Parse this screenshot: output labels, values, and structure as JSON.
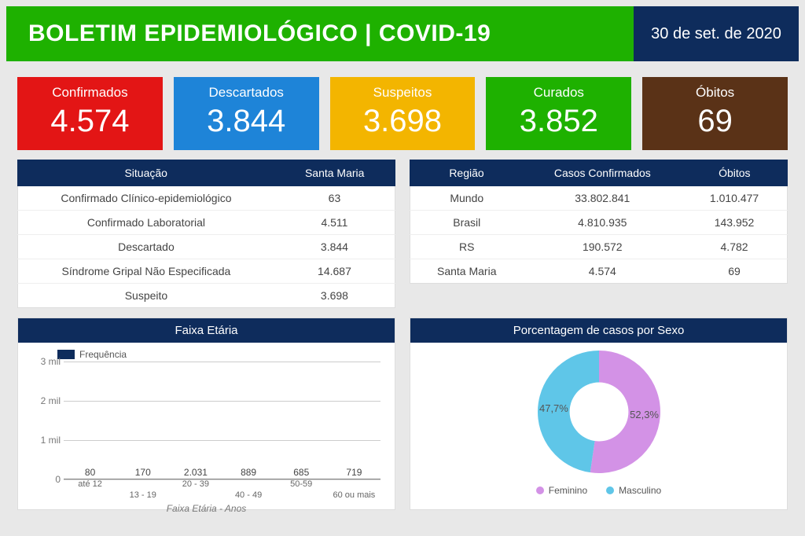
{
  "header": {
    "title": "BOLETIM EPIDEMIOLÓGICO | COVID-19",
    "date": "30 de set. de 2020",
    "title_bg": "#1eb100",
    "date_bg": "#0e2c5c",
    "title_fontsize": 30
  },
  "cards": [
    {
      "label": "Confirmados",
      "value": "4.574",
      "bg": "#e31515"
    },
    {
      "label": "Descartados",
      "value": "3.844",
      "bg": "#1e84d8"
    },
    {
      "label": "Suspeitos",
      "value": "3.698",
      "bg": "#f3b500"
    },
    {
      "label": "Curados",
      "value": "3.852",
      "bg": "#1eb100"
    },
    {
      "label": "Óbitos",
      "value": "69",
      "bg": "#5a3217"
    }
  ],
  "situacao_table": {
    "headers": [
      "Situação",
      "Santa Maria"
    ],
    "rows": [
      [
        "Confirmado Clínico-epidemiológico",
        "63"
      ],
      [
        "Confirmado Laboratorial",
        "4.511"
      ],
      [
        "Descartado",
        "3.844"
      ],
      [
        "Síndrome Gripal Não Especificada",
        "14.687"
      ],
      [
        "Suspeito",
        "3.698"
      ]
    ]
  },
  "regiao_table": {
    "headers": [
      "Região",
      "Casos Confirmados",
      "Óbitos"
    ],
    "rows": [
      [
        "Mundo",
        "33.802.841",
        "1.010.477"
      ],
      [
        "Brasil",
        "4.810.935",
        "143.952"
      ],
      [
        "RS",
        "190.572",
        "4.782"
      ],
      [
        "Santa Maria",
        "4.574",
        "69"
      ]
    ]
  },
  "bar_chart": {
    "type": "bar",
    "title": "Faixa Etária",
    "legend_label": "Frequência",
    "categories": [
      "até 12",
      "13 - 19",
      "20 - 39",
      "40 - 49",
      "50-59",
      "60 ou mais"
    ],
    "values": [
      80,
      170,
      2031,
      889,
      685,
      719
    ],
    "value_labels": [
      "80",
      "170",
      "2.031",
      "889",
      "685",
      "719"
    ],
    "bar_color": "#0e2c5c",
    "ylim": [
      0,
      3000
    ],
    "yticks": [
      0,
      1000,
      2000,
      3000
    ],
    "ytick_labels": [
      "0",
      "1 mil",
      "2 mil",
      "3 mil"
    ],
    "xaxis_title": "Faixa Etária - Anos",
    "grid_color": "#cccccc",
    "label_fontsize": 12,
    "title_fontsize": 15,
    "background_color": "#ffffff"
  },
  "donut_chart": {
    "type": "pie",
    "title": "Porcentagem de casos por Sexo",
    "slices": [
      {
        "label": "Feminino",
        "pct": 52.3,
        "pct_label": "52,3%",
        "color": "#d392e6"
      },
      {
        "label": "Masculino",
        "pct": 47.7,
        "pct_label": "47,7%",
        "color": "#5fc6e8"
      }
    ],
    "inner_radius_pct": 48,
    "outer_radius": 78,
    "background_color": "#ffffff",
    "hole_color": "#ffffff",
    "label_fontsize": 13,
    "legend_fontsize": 12
  },
  "colors": {
    "page_bg": "#e8e8e8",
    "table_header_bg": "#0e2c5c",
    "table_row_border": "#eeeeee",
    "text_muted": "#666666"
  }
}
